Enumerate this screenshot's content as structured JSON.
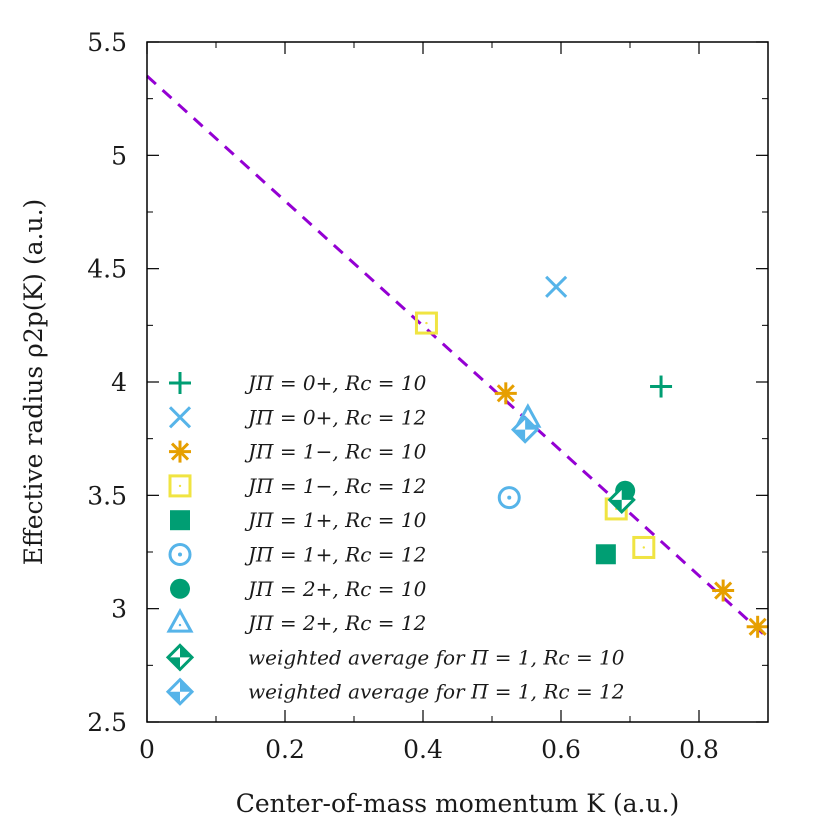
{
  "chart_data": {
    "type": "scatter",
    "xlabel": "Center-of-mass momentum K (a.u.)",
    "ylabel": "Effective radius ρ2p(K) (a.u.)",
    "xlim": [
      0,
      0.9
    ],
    "ylim": [
      2.5,
      5.5
    ],
    "xticks": [
      0,
      0.2,
      0.4,
      0.6,
      0.8
    ],
    "yticks": [
      2.5,
      3,
      3.5,
      4,
      4.5,
      5,
      5.5
    ],
    "xtick_labels": [
      "0",
      "0.2",
      "0.4",
      "0.6",
      "0.8"
    ],
    "ytick_labels": [
      "2.5",
      "3",
      "3.5",
      "4",
      "4.5",
      "5",
      "5.5"
    ],
    "legend_position": "lower-left",
    "colors": {
      "green": "#009e73",
      "sky": "#56b4e9",
      "orange": "#e69f00",
      "yellow": "#f0e442",
      "fit": "#9400d3"
    },
    "series": [
      {
        "name": "JΠ = 0+, Rc = 10",
        "marker": "plus",
        "color": "#009e73",
        "points": [
          [
            0.745,
            3.98
          ]
        ]
      },
      {
        "name": "JΠ = 0+, Rc = 12",
        "marker": "cross",
        "color": "#56b4e9",
        "points": [
          [
            0.593,
            4.42
          ]
        ]
      },
      {
        "name": "JΠ = 1−, Rc = 10",
        "marker": "star",
        "color": "#e69f00",
        "points": [
          [
            0.52,
            3.95
          ],
          [
            0.835,
            3.08
          ],
          [
            0.885,
            2.92
          ]
        ]
      },
      {
        "name": "JΠ = 1−, Rc = 12",
        "marker": "open-square",
        "color": "#f0e442",
        "points": [
          [
            0.405,
            4.26
          ],
          [
            0.68,
            3.44
          ],
          [
            0.72,
            3.27
          ]
        ]
      },
      {
        "name": "JΠ = 1+, Rc = 10",
        "marker": "filled-square",
        "color": "#009e73",
        "points": [
          [
            0.665,
            3.24
          ]
        ]
      },
      {
        "name": "JΠ = 1+, Rc = 12",
        "marker": "open-circle",
        "color": "#56b4e9",
        "points": [
          [
            0.525,
            3.49
          ]
        ]
      },
      {
        "name": "JΠ = 2+, Rc = 10",
        "marker": "filled-circle",
        "color": "#009e73",
        "points": [
          [
            0.693,
            3.52
          ]
        ]
      },
      {
        "name": "JΠ = 2+, Rc = 12",
        "marker": "open-triangle",
        "color": "#56b4e9",
        "points": [
          [
            0.552,
            3.84
          ]
        ]
      },
      {
        "name": "weighted average for Π = 1, Rc = 10",
        "marker": "half-diamond",
        "color": "#009e73",
        "points": [
          [
            0.688,
            3.48
          ]
        ]
      },
      {
        "name": "weighted average for Π = 1, Rc = 12",
        "marker": "half-diamond",
        "color": "#56b4e9",
        "points": [
          [
            0.548,
            3.79
          ]
        ]
      }
    ],
    "fit_line": {
      "style": "dashed",
      "color": "#9400d3",
      "x": [
        0,
        0.9
      ],
      "y": [
        5.35,
        2.87
      ]
    }
  }
}
